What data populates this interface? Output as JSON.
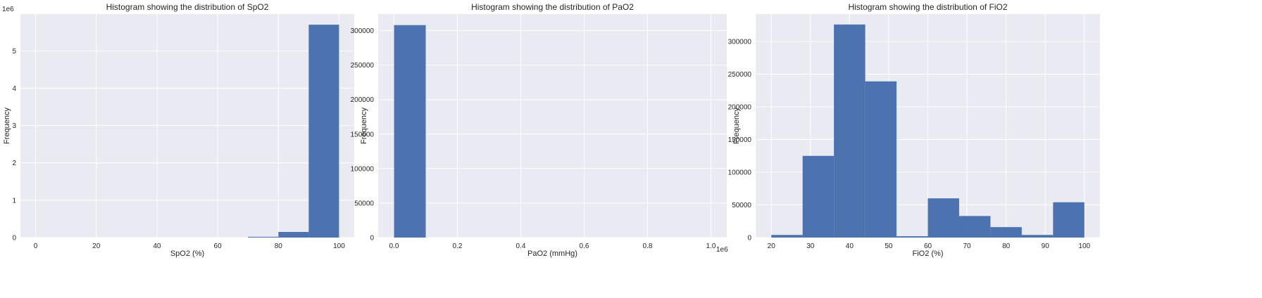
{
  "style": {
    "axes_bg": "#EAEAF2",
    "grid": "#FFFFFF",
    "bar": "#4C72B0",
    "text": "#262626"
  },
  "chart_data": [
    {
      "type": "bar",
      "subtype": "histogram",
      "title": "Histogram showing the distribution of SpO2",
      "xlabel": "SpO2 (%)",
      "ylabel": "Frequency",
      "xlim": [
        -5,
        105
      ],
      "ylim": [
        0,
        5.985
      ],
      "y_offset_text": "1e6",
      "xticks": [
        0,
        20,
        40,
        60,
        80,
        100
      ],
      "xtick_labels": [
        "0",
        "20",
        "40",
        "60",
        "80",
        "100"
      ],
      "yticks": [
        0,
        1,
        2,
        3,
        4,
        5
      ],
      "ytick_labels": [
        "0",
        "1",
        "2",
        "3",
        "4",
        "5"
      ],
      "bin_edges": [
        0,
        10,
        20,
        30,
        40,
        50,
        60,
        70,
        80,
        90,
        100
      ],
      "values": [
        0,
        0,
        0,
        0,
        0,
        0,
        0,
        0.02,
        0.15,
        5.7
      ],
      "grid": true
    },
    {
      "type": "bar",
      "subtype": "histogram",
      "title": "Histogram showing the distribution of PaO2",
      "xlabel": "PaO2 (mmHg)",
      "ylabel": "Frequency",
      "xlim": [
        -0.05,
        1.05
      ],
      "ylim": [
        0,
        324000
      ],
      "x_offset_text": "1e6",
      "xticks": [
        0,
        0.2,
        0.4,
        0.6,
        0.8,
        1.0
      ],
      "xtick_labels": [
        "0.0",
        "0.2",
        "0.4",
        "0.6",
        "0.8",
        "1.0"
      ],
      "yticks": [
        0,
        50000,
        100000,
        150000,
        200000,
        250000,
        300000
      ],
      "ytick_labels": [
        "0",
        "50000",
        "100000",
        "150000",
        "200000",
        "250000",
        "300000"
      ],
      "bin_edges": [
        0,
        0.1,
        0.2,
        0.3,
        0.4,
        0.5,
        0.6,
        0.7,
        0.8,
        0.9,
        1.0
      ],
      "values": [
        308000,
        0,
        0,
        0,
        0,
        0,
        0,
        0,
        0,
        0
      ],
      "grid": true
    },
    {
      "type": "bar",
      "subtype": "histogram",
      "title": "Histogram showing the distribution of FiO2",
      "xlabel": "FiO2 (%)",
      "ylabel": "Frequency",
      "xlim": [
        16,
        104
      ],
      "ylim": [
        0,
        342000
      ],
      "xticks": [
        20,
        30,
        40,
        50,
        60,
        70,
        80,
        90,
        100
      ],
      "xtick_labels": [
        "20",
        "30",
        "40",
        "50",
        "60",
        "70",
        "80",
        "90",
        "100"
      ],
      "yticks": [
        0,
        50000,
        100000,
        150000,
        200000,
        250000,
        300000
      ],
      "ytick_labels": [
        "0",
        "50000",
        "100000",
        "150000",
        "200000",
        "250000",
        "300000"
      ],
      "bin_edges": [
        20,
        28,
        36,
        44,
        52,
        60,
        68,
        76,
        84,
        92,
        100
      ],
      "values": [
        4000,
        125000,
        326000,
        239000,
        2000,
        60000,
        33000,
        16000,
        4000,
        54000
      ],
      "grid": true
    }
  ]
}
